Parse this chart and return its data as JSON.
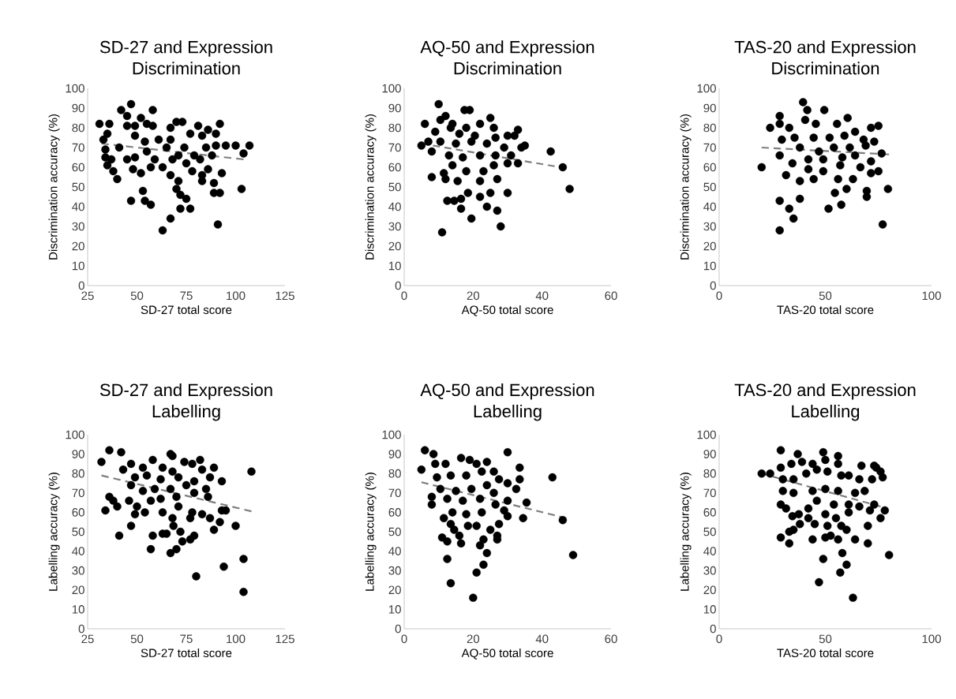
{
  "chart_data": [
    {
      "type": "scatter",
      "title": "SD-27 and Expression Discrimination",
      "xlabel": "SD-27 total score",
      "ylabel": "Discrimination accuracy (%)",
      "xlim": [
        25,
        125
      ],
      "xticks": [
        25,
        50,
        75,
        100,
        125
      ],
      "ylim": [
        0,
        100
      ],
      "yticks": [
        0,
        10,
        20,
        30,
        40,
        50,
        60,
        70,
        80,
        90,
        100
      ],
      "series": [
        {
          "type": "scatter",
          "marker": "circle",
          "color": "#000000",
          "x": [
            31,
            36,
            47,
            45,
            42,
            58,
            52,
            92,
            107,
            100,
            104,
            103,
            93,
            89,
            89,
            92,
            91,
            77,
            72,
            67,
            63,
            57,
            54,
            53,
            47,
            40,
            38,
            35,
            34,
            33,
            70,
            72,
            75,
            67,
            83,
            83,
            86,
            71,
            78,
            63,
            57,
            52,
            48,
            45,
            37,
            59,
            41,
            45,
            49,
            55,
            58,
            67,
            70,
            73,
            81,
            86,
            90,
            83,
            77,
            67,
            61,
            54,
            49,
            35,
            65,
            74,
            85,
            90,
            95,
            71,
            79,
            88,
            55,
            68,
            75,
            82,
            49,
            34
          ],
          "values": [
            82,
            82,
            92,
            86,
            89,
            89,
            85,
            82,
            71,
            71,
            67,
            49,
            57,
            52,
            47,
            47,
            31,
            39,
            39,
            34,
            28,
            41,
            43,
            48,
            43,
            54,
            58,
            61,
            69,
            74,
            49,
            46,
            44,
            56,
            56,
            53,
            59,
            53,
            58,
            60,
            60,
            57,
            59,
            64,
            64,
            64,
            70,
            81,
            81,
            82,
            81,
            80,
            83,
            83,
            81,
            79,
            77,
            76,
            77,
            74,
            74,
            73,
            76,
            77,
            70,
            70,
            70,
            71,
            71,
            66,
            66,
            66,
            68,
            64,
            62,
            64,
            65,
            65
          ]
        },
        {
          "type": "line",
          "color": "#7f7f7f",
          "line_style": "dashed",
          "marker": "none",
          "x": [
            32,
            104
          ],
          "values": [
            72,
            64
          ]
        }
      ]
    },
    {
      "type": "scatter",
      "title": "AQ-50 and Expression Discrimination",
      "xlabel": "AQ-50 total score",
      "ylabel": "Discrimination accuracy (%)",
      "xlim": [
        0,
        60
      ],
      "xticks": [
        0,
        20,
        40,
        60
      ],
      "ylim": [
        0,
        100
      ],
      "yticks": [
        0,
        10,
        20,
        30,
        40,
        50,
        60,
        70,
        80,
        90,
        100
      ],
      "series": [
        {
          "type": "scatter",
          "marker": "circle",
          "color": "#000000",
          "x": [
            5,
            10,
            17.5,
            19,
            6,
            12,
            25,
            33,
            30,
            32,
            35,
            34,
            42.5,
            46,
            48,
            30,
            28,
            27,
            24,
            22,
            25,
            19.5,
            18.5,
            16.5,
            16.5,
            14.5,
            12.5,
            11,
            8,
            12,
            15.5,
            22,
            27,
            30,
            33,
            31,
            8,
            7,
            11.5,
            14,
            18,
            23,
            26,
            13,
            17,
            22,
            26.5,
            10.5,
            15,
            19.5,
            24,
            29,
            9,
            13.5,
            18,
            22,
            26,
            16,
            20.5,
            26.5,
            10.5,
            14
          ],
          "values": [
            71,
            92,
            89,
            89,
            82,
            86,
            85,
            79,
            76,
            76,
            71,
            70,
            68,
            60,
            49,
            47,
            30,
            38,
            40,
            45,
            47,
            34,
            47,
            39,
            44,
            43,
            43,
            27,
            55,
            54,
            53,
            53,
            54,
            62,
            62,
            66,
            68,
            73,
            57,
            61,
            58,
            58,
            61,
            66,
            65,
            66,
            66,
            73,
            72,
            73,
            72,
            70,
            78,
            80,
            80,
            82,
            80,
            77,
            76,
            75,
            84,
            82
          ]
        },
        {
          "type": "line",
          "color": "#7f7f7f",
          "line_style": "dashed",
          "marker": "none",
          "x": [
            5,
            47
          ],
          "values": [
            72,
            59.5
          ]
        }
      ]
    },
    {
      "type": "scatter",
      "title": "TAS-20 and Expression Discrimination",
      "xlabel": "TAS-20 total score",
      "ylabel": "Discrimination accuracy (%)",
      "xlim": [
        0,
        100
      ],
      "xticks": [
        0,
        50,
        100
      ],
      "ylim": [
        0,
        100
      ],
      "yticks": [
        0,
        10,
        20,
        30,
        40,
        50,
        60,
        70,
        80,
        90,
        100
      ],
      "series": [
        {
          "type": "scatter",
          "marker": "circle",
          "color": "#000000",
          "x": [
            20,
            24,
            28.5,
            28.5,
            39.5,
            41.5,
            49.5,
            60.5,
            75,
            71.5,
            76.5,
            79.5,
            77,
            69.5,
            69.5,
            71.5,
            75,
            71.5,
            66.5,
            63,
            60,
            57.5,
            54.5,
            51.5,
            56,
            38,
            35,
            33,
            28.5,
            28.5,
            31.5,
            38,
            44.5,
            28.5,
            29.5,
            34.5,
            42,
            49,
            57,
            33,
            40.5,
            45.5,
            55.5,
            64,
            35.5,
            44.5,
            52,
            59,
            68,
            73,
            38,
            47,
            54,
            61.5,
            69,
            42,
            49,
            58,
            64
          ],
          "values": [
            60,
            80,
            86,
            82,
            93,
            89,
            89,
            85,
            81,
            80,
            67,
            49,
            31,
            48,
            45,
            57,
            58,
            63,
            60,
            54,
            49,
            41,
            47,
            39,
            54,
            44,
            34,
            39,
            43,
            28,
            56,
            53,
            54,
            66,
            74,
            62,
            59,
            58,
            61,
            80,
            84,
            82,
            82,
            78,
            75,
            75,
            75,
            76,
            74,
            73,
            70,
            68,
            70,
            70,
            71,
            64,
            64,
            65,
            66
          ]
        },
        {
          "type": "line",
          "color": "#7f7f7f",
          "line_style": "dashed",
          "marker": "none",
          "x": [
            20,
            80
          ],
          "values": [
            70,
            66.5
          ]
        }
      ]
    },
    {
      "type": "scatter",
      "title": "SD-27 and Expression Labelling",
      "xlabel": "SD-27 total score",
      "ylabel": "Labelling accuracy (%)",
      "xlim": [
        25,
        125
      ],
      "xticks": [
        25,
        50,
        75,
        100,
        125
      ],
      "ylim": [
        0,
        100
      ],
      "yticks": [
        0,
        10,
        20,
        30,
        40,
        50,
        60,
        70,
        80,
        90,
        100
      ],
      "series": [
        {
          "type": "scatter",
          "marker": "circle",
          "color": "#000000",
          "x": [
            32,
            36,
            42,
            34,
            36,
            38,
            40,
            41,
            46,
            47,
            49,
            57,
            58,
            63,
            65,
            67,
            70,
            67,
            68,
            68.5,
            72,
            73,
            77,
            79,
            80,
            82,
            89,
            92,
            95,
            94,
            100,
            104,
            104,
            108,
            93,
            89,
            83,
            78,
            74,
            58,
            47,
            53,
            63,
            68,
            43,
            49,
            55,
            62,
            71,
            79,
            87,
            47,
            53,
            59,
            67,
            75,
            85,
            50,
            57,
            62,
            70,
            79,
            86,
            63,
            71,
            78,
            83,
            54,
            68,
            77,
            87,
            93
          ],
          "values": [
            86,
            92,
            91,
            61,
            68,
            66,
            63,
            48,
            66,
            53,
            59,
            41,
            48,
            49,
            49,
            39,
            41,
            90,
            89,
            53,
            50,
            45,
            46,
            48,
            27,
            87,
            51,
            55,
            61,
            32,
            53,
            36,
            19,
            81,
            76,
            83,
            82,
            85,
            86,
            87,
            85,
            83,
            83,
            81,
            82,
            78,
            79,
            77,
            78,
            76,
            78,
            74,
            71,
            72,
            72,
            74,
            72,
            63,
            66,
            67,
            68,
            70,
            68,
            60,
            63,
            60,
            59,
            60,
            57,
            57,
            57,
            61
          ]
        },
        {
          "type": "line",
          "color": "#7f7f7f",
          "line_style": "dashed",
          "marker": "none",
          "x": [
            32,
            108
          ],
          "values": [
            79,
            60.5
          ]
        }
      ]
    },
    {
      "type": "scatter",
      "title": "AQ-50 and Expression Labelling",
      "xlabel": "AQ-50 total score",
      "ylabel": "Labelling accuracy (%)",
      "xlim": [
        0,
        60
      ],
      "xticks": [
        0,
        20,
        40,
        60
      ],
      "ylim": [
        0,
        100
      ],
      "yticks": [
        0,
        10,
        20,
        30,
        40,
        50,
        60,
        70,
        80,
        90,
        100
      ],
      "series": [
        {
          "type": "scatter",
          "marker": "circle",
          "color": "#000000",
          "x": [
            6,
            8.5,
            5,
            8,
            8,
            30,
            33.5,
            33.5,
            43,
            35.5,
            34.5,
            46,
            49,
            30,
            32.5,
            30,
            30,
            27,
            27,
            24,
            23,
            21,
            20,
            13.5,
            12.5,
            11,
            12.5,
            16.5,
            16,
            22,
            23,
            25,
            21,
            18.5,
            14.5,
            13.5,
            11.5,
            27.5,
            29,
            14,
            18,
            22.5,
            26.5,
            12.5,
            17,
            22,
            26,
            10.5,
            15,
            19.5,
            24,
            27.5,
            9.5,
            13.5,
            18,
            22.5,
            26,
            9,
            12,
            16.5,
            19,
            21,
            24
          ],
          "values": [
            92,
            90,
            82,
            68,
            64,
            91,
            83,
            77,
            78,
            65,
            57,
            56,
            38,
            75,
            72,
            66,
            58,
            48,
            46,
            39,
            33,
            29,
            16,
            23.5,
            36,
            47,
            45,
            44,
            48,
            43,
            46,
            51,
            53,
            53,
            51,
            54,
            57,
            54,
            61,
            60,
            59,
            60,
            64,
            67,
            66,
            67,
            70,
            72,
            71,
            72,
            74,
            77,
            78,
            79,
            79,
            81,
            81,
            85,
            85,
            88,
            87,
            85,
            86
          ]
        },
        {
          "type": "line",
          "color": "#7f7f7f",
          "line_style": "dashed",
          "marker": "none",
          "x": [
            5,
            47
          ],
          "values": [
            75.5,
            57
          ]
        }
      ]
    },
    {
      "type": "scatter",
      "title": "TAS-20 and Expression Labelling",
      "xlabel": "TAS-20 total score",
      "ylabel": "Labelling accuracy (%)",
      "xlim": [
        0,
        100
      ],
      "xticks": [
        0,
        50,
        100
      ],
      "ylim": [
        0,
        100
      ],
      "yticks": [
        0,
        10,
        20,
        30,
        40,
        50,
        60,
        70,
        80,
        90,
        100
      ],
      "series": [
        {
          "type": "scatter",
          "marker": "circle",
          "color": "#000000",
          "x": [
            20,
            24,
            29,
            37,
            49,
            50,
            56,
            56,
            67,
            73,
            74,
            76,
            77,
            78,
            80,
            76,
            73,
            70,
            70,
            64,
            63,
            60,
            57,
            58,
            47,
            49,
            44,
            50,
            52.5,
            56,
            60,
            33,
            29,
            33,
            35,
            38,
            42,
            45,
            29,
            31.5,
            34.5,
            37.5,
            42,
            29,
            34,
            39,
            44,
            30,
            35,
            41,
            46,
            51,
            57.5,
            61,
            66,
            72,
            30,
            35,
            44,
            50,
            56,
            64,
            68.5,
            46,
            54,
            61,
            66,
            71,
            50,
            55,
            61,
            51,
            57.5
          ],
          "values": [
            80,
            80,
            92,
            90,
            91,
            87,
            89,
            85,
            84,
            84,
            83,
            81,
            78,
            61,
            38,
            57,
            64,
            53,
            44,
            46,
            16,
            33,
            29,
            39,
            24,
            36,
            46,
            47,
            48,
            46,
            51,
            44,
            47,
            50,
            51,
            54,
            57,
            54,
            64,
            62,
            58,
            59,
            62,
            83,
            85,
            86,
            85,
            77,
            77,
            80,
            82,
            81,
            79,
            79,
            77,
            77,
            71,
            70,
            71,
            72,
            71,
            70,
            71,
            66,
            64,
            64,
            63,
            61,
            59,
            57,
            60,
            53,
            53
          ]
        },
        {
          "type": "line",
          "color": "#7f7f7f",
          "line_style": "dashed",
          "marker": "none",
          "x": [
            20,
            76
          ],
          "values": [
            80,
            63
          ]
        }
      ]
    }
  ]
}
